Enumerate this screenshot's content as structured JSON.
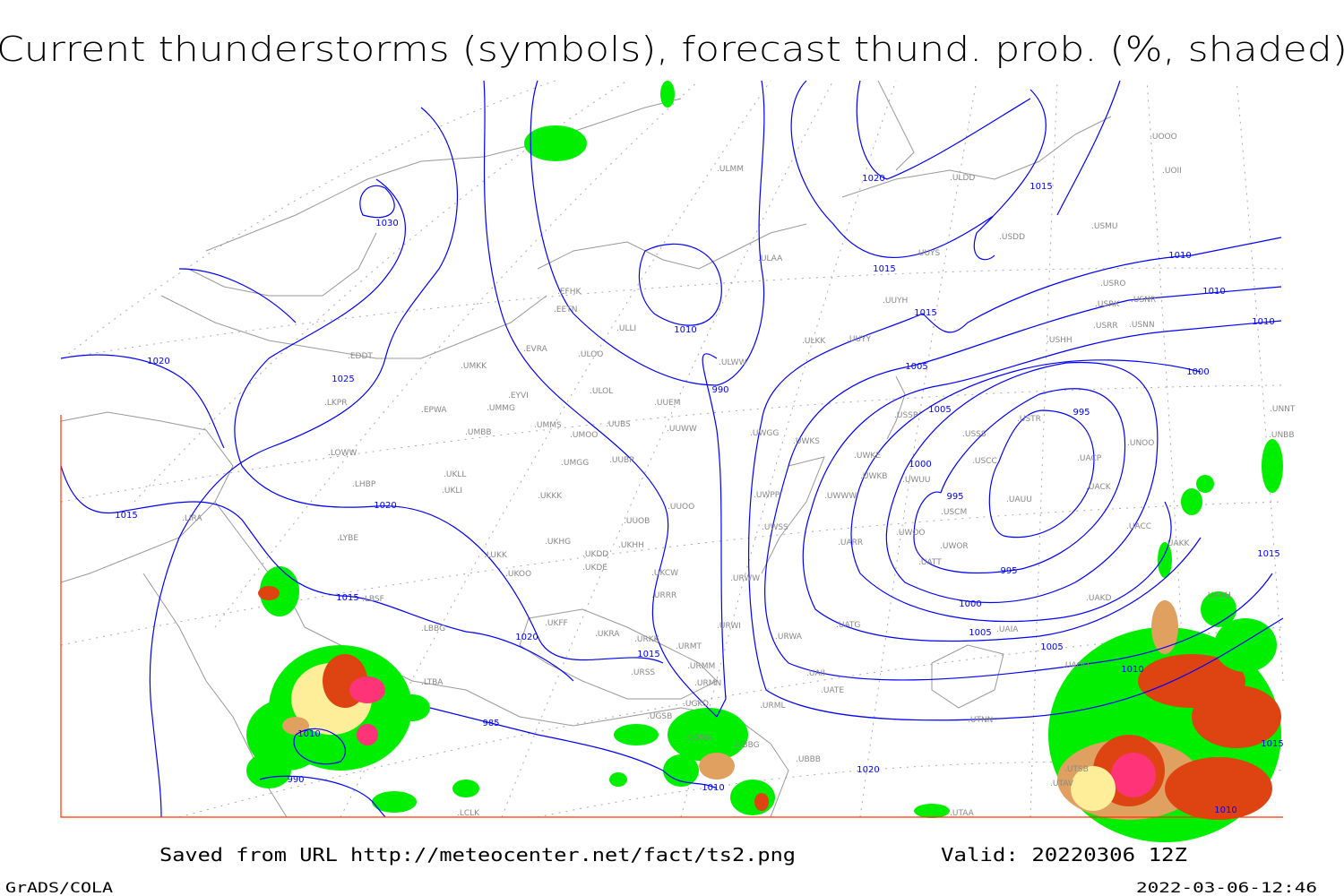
{
  "title": "Current thunderstorms (symbols), forecast thund. prob. (%, shaded)",
  "footer": {
    "source": "Saved from URL http://meteocenter.net/fact/ts2.png",
    "valid": "Valid: 20220306 12Z",
    "software": "GrADS/COLA",
    "timestamp": "2022-03-06-12:46"
  },
  "colors": {
    "isobar": "#0000ff",
    "coastline": "#999999",
    "station_label": "#888888",
    "map_border": "#ff3300",
    "prob_low": "#00ee00",
    "prob_mid": "#ffee99",
    "prob_high": "#e0a060",
    "prob_higher": "#dd4411",
    "prob_max": "#ff3377"
  },
  "isobar_labels": [
    "1030",
    "1025",
    "1020",
    "1020",
    "1020",
    "1020",
    "1015",
    "1015",
    "1015",
    "1015",
    "1015",
    "1015",
    "1010",
    "1010",
    "1010",
    "1010",
    "1010",
    "1005",
    "1005",
    "1005",
    "1005",
    "1000",
    "1000",
    "1000",
    "995",
    "995",
    "995",
    "990",
    "990",
    "985",
    "1010",
    "1015",
    "1010",
    "1020",
    "1015",
    "1010"
  ],
  "stations": [
    "ULDD",
    "UOOO",
    "UOII",
    "USMU",
    "UUYS",
    "USDD",
    "ULAA",
    "USRO",
    "USRK",
    "USNR",
    "USRR",
    "USNN",
    "USHH",
    "UUYH",
    "ULKK",
    "UUYY",
    "ULWW",
    "EFHK",
    "EETN",
    "ULLI",
    "EVRA",
    "ULOO",
    "UMKK",
    "EDDT",
    "EYVI",
    "ULOL",
    "UUEM",
    "EPWA",
    "UMMG",
    "LKPR",
    "UMMS",
    "UMOO",
    "UUBS",
    "UUWW",
    "UMBB",
    "UWGG",
    "UWKS",
    "LOWW",
    "UMGG",
    "UUBP",
    "UKLL",
    "UKLI",
    "LHBP",
    "UWKE",
    "UWKB",
    "UWUU",
    "UWPP",
    "UWWW",
    "UKKK",
    "UUOO",
    "UUOB",
    "LIRA",
    "LYBE",
    "UWSS",
    "UKHG",
    "UKDD",
    "UKHH",
    "LUKK",
    "UKOO",
    "UKDE",
    "UKCW",
    "URWW",
    "UARR",
    "UATT",
    "UWOO",
    "UWOR",
    "USCM",
    "UAUU",
    "USSS",
    "USCC",
    "USTR",
    "UACP",
    "UACK",
    "UNOO",
    "UACC",
    "UNNT",
    "UNBB",
    "UAKK",
    "UAKD",
    "UAAH",
    "URRR",
    "LBSF",
    "UKFF",
    "UKRA",
    "URKK",
    "LBBG",
    "URWI",
    "URWA",
    "UATG",
    "UAIA",
    "URMT",
    "URMM",
    "URSS",
    "URMN",
    "LTBA",
    "URML",
    "UATE",
    "UAII",
    "UGSB",
    "UGKO",
    "UDSG",
    "UBBG",
    "UBBB",
    "UTSB",
    "UTAV",
    "UTNN",
    "UAOO",
    "UTAA",
    "LCLK",
    "ULMM",
    "USSP"
  ]
}
